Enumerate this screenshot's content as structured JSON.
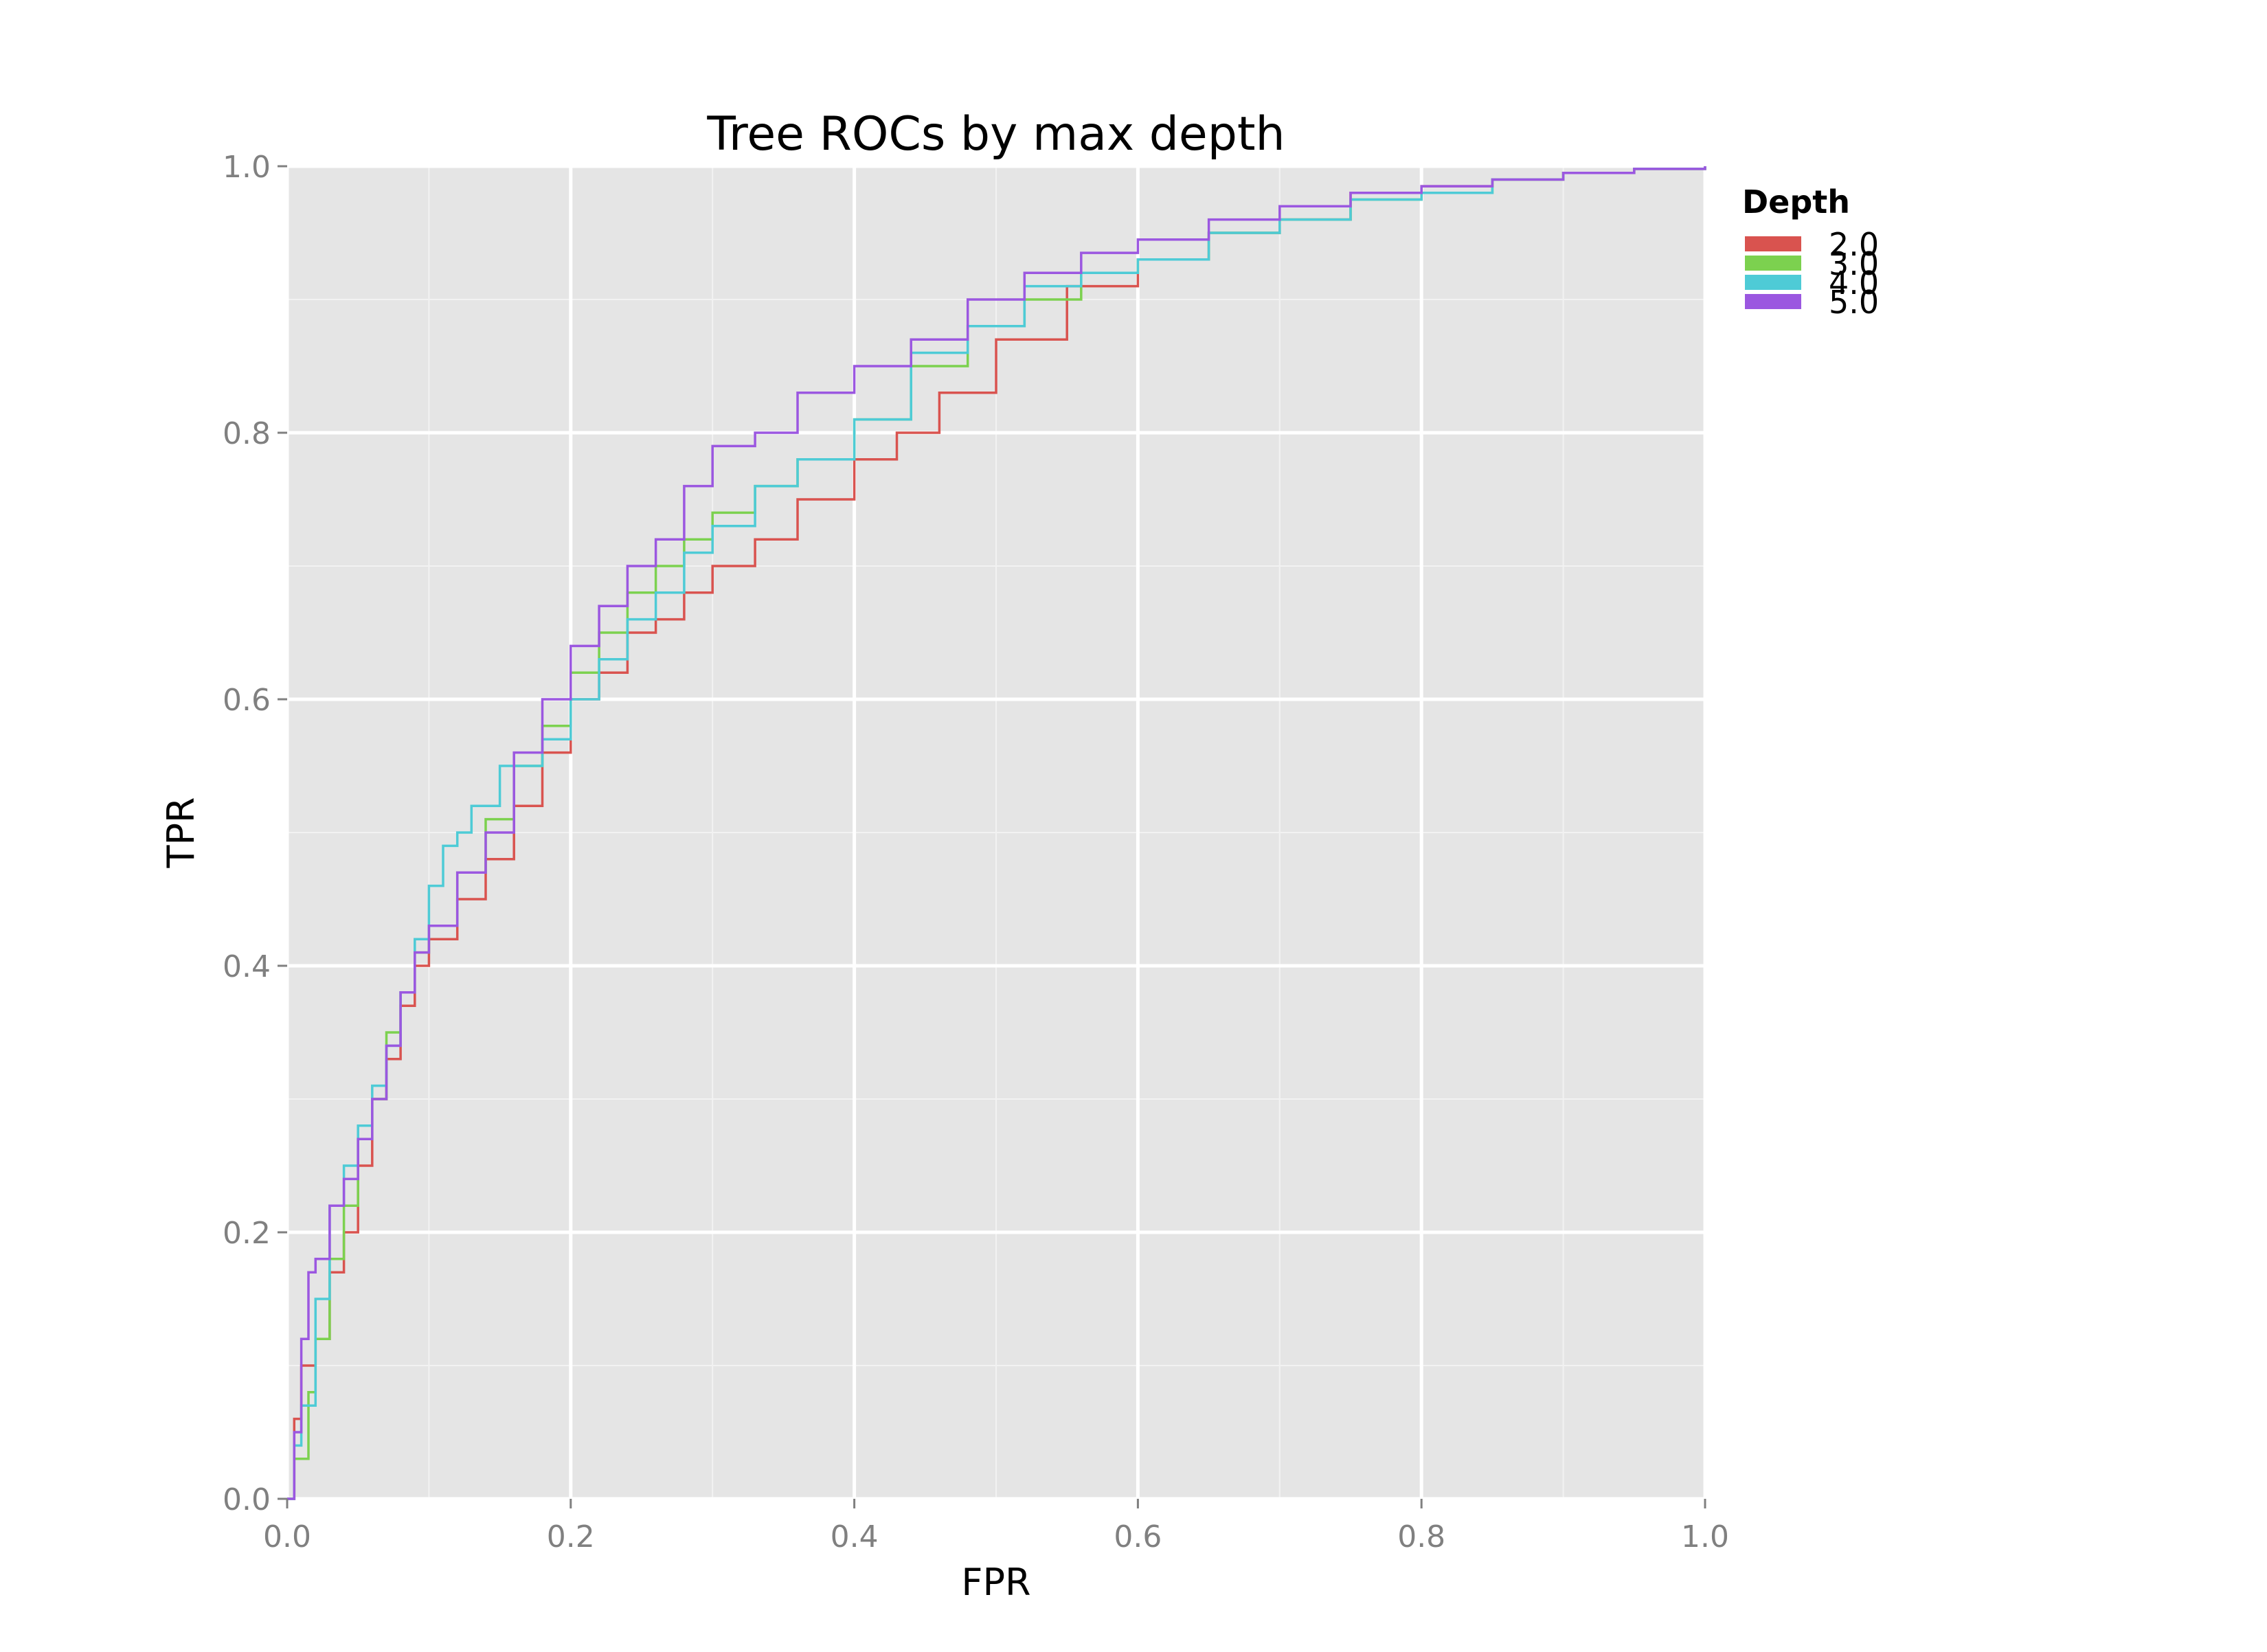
{
  "chart_data": {
    "type": "line",
    "title": "Tree ROCs by max depth",
    "xlabel": "FPR",
    "ylabel": "TPR",
    "xlim": [
      0.0,
      1.0
    ],
    "ylim": [
      0.0,
      1.0
    ],
    "x_ticks": [
      "0.0",
      "0.2",
      "0.4",
      "0.6",
      "0.8",
      "1.0"
    ],
    "y_ticks": [
      "0.0",
      "0.2",
      "0.4",
      "0.6",
      "0.8",
      "1.0"
    ],
    "grid": true,
    "legend": {
      "title": "Depth",
      "position": "right",
      "entries": [
        "2.0",
        "3.0",
        "4.0",
        "5.0"
      ]
    },
    "series": [
      {
        "name": "2.0",
        "color": "#d9534f",
        "x": [
          0.0,
          0.005,
          0.01,
          0.02,
          0.03,
          0.04,
          0.05,
          0.06,
          0.07,
          0.08,
          0.09,
          0.1,
          0.12,
          0.14,
          0.16,
          0.18,
          0.2,
          0.22,
          0.24,
          0.26,
          0.28,
          0.3,
          0.33,
          0.36,
          0.4,
          0.43,
          0.46,
          0.5,
          0.55,
          0.6,
          0.65,
          0.7,
          0.75,
          0.8,
          0.85,
          0.9,
          0.95,
          1.0
        ],
        "y": [
          0.0,
          0.06,
          0.1,
          0.12,
          0.17,
          0.2,
          0.25,
          0.3,
          0.33,
          0.37,
          0.4,
          0.42,
          0.45,
          0.48,
          0.52,
          0.56,
          0.6,
          0.62,
          0.65,
          0.66,
          0.68,
          0.7,
          0.72,
          0.75,
          0.78,
          0.8,
          0.83,
          0.87,
          0.91,
          0.93,
          0.95,
          0.96,
          0.98,
          0.985,
          0.99,
          0.995,
          0.998,
          1.0
        ]
      },
      {
        "name": "3.0",
        "color": "#7cd14f",
        "x": [
          0.0,
          0.005,
          0.015,
          0.02,
          0.03,
          0.04,
          0.05,
          0.06,
          0.07,
          0.08,
          0.09,
          0.1,
          0.12,
          0.14,
          0.16,
          0.18,
          0.2,
          0.22,
          0.24,
          0.26,
          0.28,
          0.3,
          0.33,
          0.36,
          0.4,
          0.44,
          0.48,
          0.52,
          0.56,
          0.6,
          0.65,
          0.7,
          0.75,
          0.8,
          0.85,
          0.9,
          0.95,
          1.0
        ],
        "y": [
          0.0,
          0.03,
          0.08,
          0.12,
          0.18,
          0.22,
          0.27,
          0.3,
          0.35,
          0.38,
          0.41,
          0.43,
          0.47,
          0.51,
          0.55,
          0.58,
          0.62,
          0.65,
          0.68,
          0.7,
          0.72,
          0.74,
          0.76,
          0.78,
          0.81,
          0.85,
          0.88,
          0.9,
          0.92,
          0.93,
          0.95,
          0.96,
          0.975,
          0.98,
          0.99,
          0.995,
          0.998,
          1.0
        ]
      },
      {
        "name": "4.0",
        "color": "#4ecbd6",
        "x": [
          0.0,
          0.005,
          0.01,
          0.02,
          0.03,
          0.04,
          0.05,
          0.06,
          0.07,
          0.08,
          0.09,
          0.1,
          0.11,
          0.12,
          0.13,
          0.15,
          0.18,
          0.2,
          0.22,
          0.24,
          0.26,
          0.28,
          0.3,
          0.33,
          0.36,
          0.4,
          0.44,
          0.48,
          0.52,
          0.56,
          0.6,
          0.65,
          0.7,
          0.75,
          0.8,
          0.85,
          0.9,
          0.95,
          1.0
        ],
        "y": [
          0.0,
          0.04,
          0.07,
          0.15,
          0.22,
          0.25,
          0.28,
          0.31,
          0.34,
          0.38,
          0.42,
          0.46,
          0.49,
          0.5,
          0.52,
          0.55,
          0.57,
          0.6,
          0.63,
          0.66,
          0.68,
          0.71,
          0.73,
          0.76,
          0.78,
          0.81,
          0.86,
          0.88,
          0.91,
          0.92,
          0.93,
          0.95,
          0.96,
          0.975,
          0.98,
          0.99,
          0.995,
          0.998,
          1.0
        ]
      },
      {
        "name": "5.0",
        "color": "#9b57e0",
        "x": [
          0.0,
          0.005,
          0.01,
          0.015,
          0.02,
          0.03,
          0.04,
          0.05,
          0.06,
          0.07,
          0.08,
          0.09,
          0.1,
          0.12,
          0.14,
          0.16,
          0.18,
          0.2,
          0.22,
          0.24,
          0.26,
          0.28,
          0.3,
          0.33,
          0.36,
          0.4,
          0.44,
          0.48,
          0.52,
          0.56,
          0.6,
          0.65,
          0.7,
          0.75,
          0.8,
          0.85,
          0.9,
          0.95,
          1.0
        ],
        "y": [
          0.0,
          0.05,
          0.12,
          0.17,
          0.18,
          0.22,
          0.24,
          0.27,
          0.3,
          0.34,
          0.38,
          0.41,
          0.43,
          0.47,
          0.5,
          0.56,
          0.6,
          0.64,
          0.67,
          0.7,
          0.72,
          0.76,
          0.79,
          0.8,
          0.83,
          0.85,
          0.87,
          0.9,
          0.92,
          0.935,
          0.945,
          0.96,
          0.97,
          0.98,
          0.985,
          0.99,
          0.995,
          0.998,
          1.0
        ]
      }
    ]
  }
}
